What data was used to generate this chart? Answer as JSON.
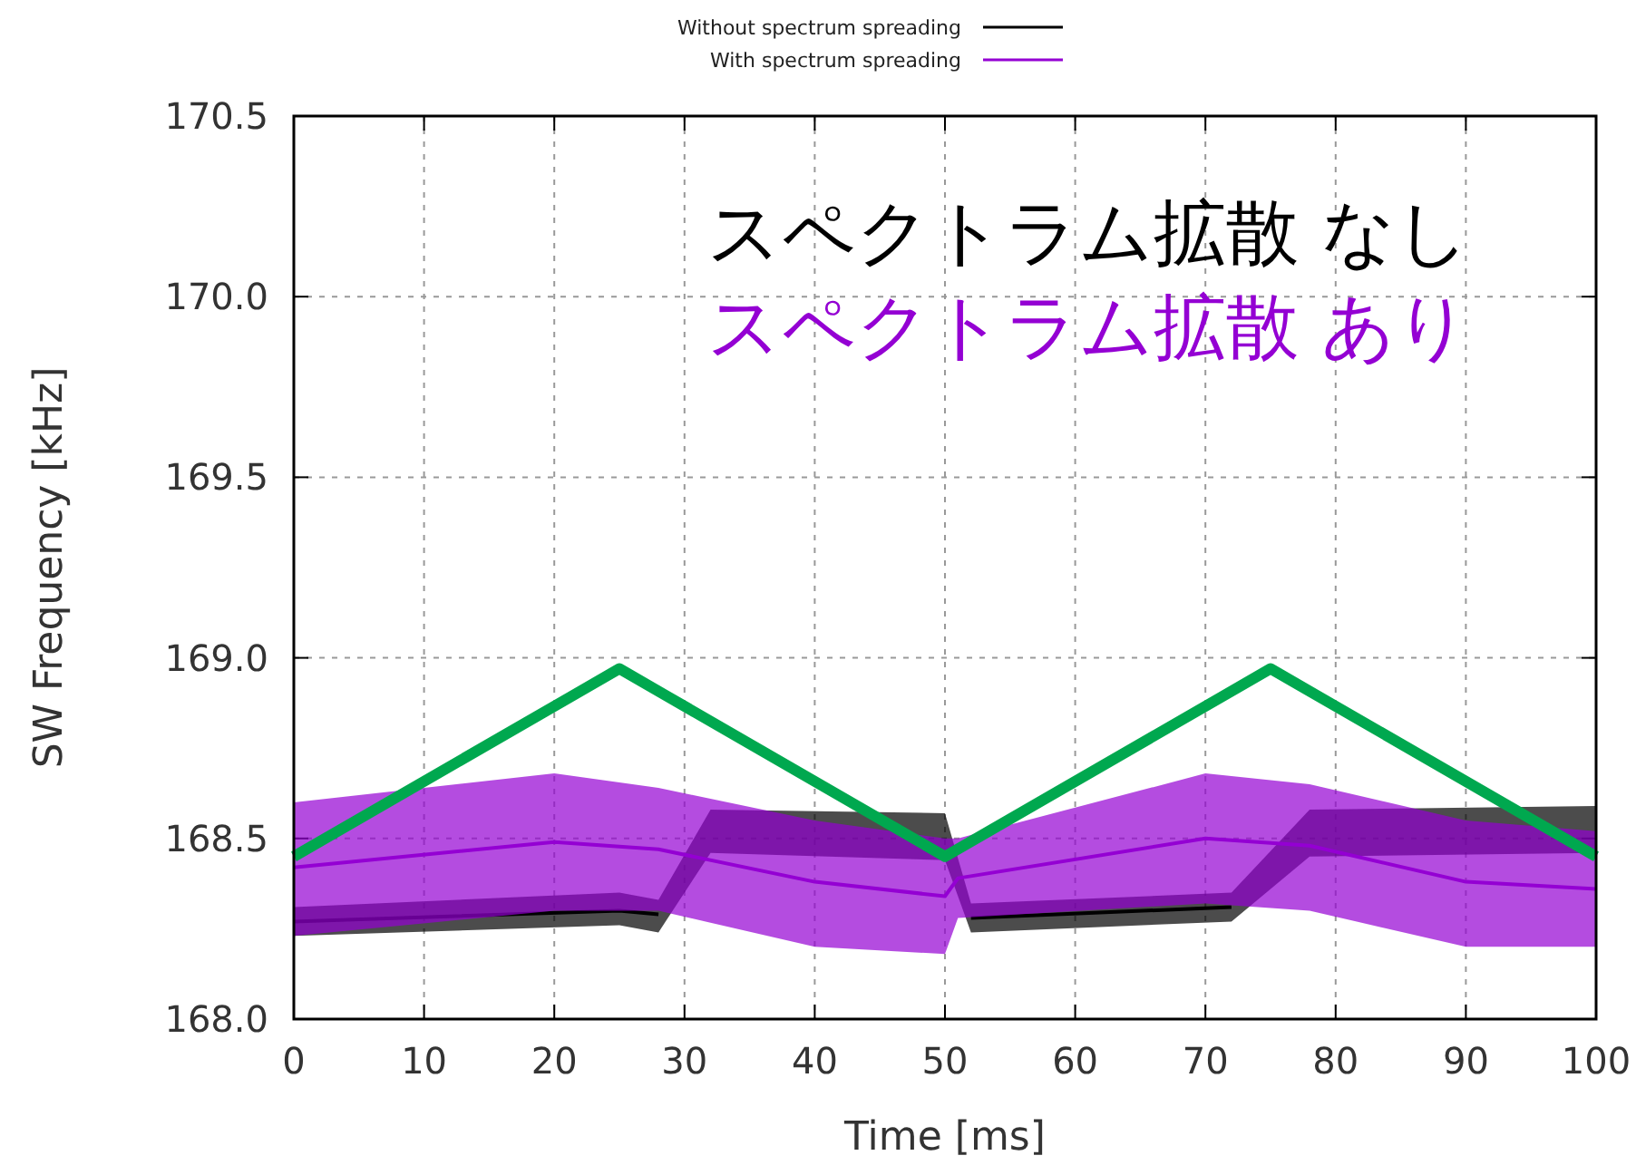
{
  "chart_data": {
    "type": "line",
    "xlabel": "Time [ms]",
    "ylabel": "SW Frequency [kHz]",
    "xlim": [
      0,
      100
    ],
    "xticks": [
      0,
      10,
      20,
      30,
      40,
      50,
      60,
      70,
      80,
      90,
      100
    ],
    "ylim": [
      168.0,
      170.5
    ],
    "yticks": [
      {
        "value": 168.0,
        "label": "168.0"
      },
      {
        "value": 168.5,
        "label": "168.5"
      },
      {
        "value": 169.0,
        "label": "169.0"
      },
      {
        "value": 169.5,
        "label": "169.5"
      },
      {
        "value": 170.0,
        "label": "170.0"
      },
      {
        "value": 170.5,
        "label": "170.5"
      }
    ],
    "grid": true,
    "legend": "top",
    "marker": "none",
    "line_style": "solid",
    "series": [
      {
        "name": "Without spectrum spreading",
        "color": "#000000",
        "x": [
          0,
          25,
          28,
          32,
          50,
          52,
          72,
          78,
          100
        ],
        "values": [
          168.27,
          168.3,
          168.29,
          null,
          null,
          168.28,
          168.31,
          null,
          null
        ],
        "lower": [
          168.23,
          168.26,
          168.24,
          168.46,
          168.44,
          168.24,
          168.27,
          168.45,
          168.46
        ],
        "upper": [
          168.31,
          168.35,
          168.33,
          168.58,
          168.57,
          168.32,
          168.35,
          168.58,
          168.59
        ]
      },
      {
        "name": "With spectrum spreading",
        "color": "#9400d3",
        "x": [
          0,
          20,
          28,
          40,
          50,
          51,
          70,
          78,
          90,
          100
        ],
        "values": [
          168.42,
          168.49,
          168.47,
          168.38,
          168.34,
          168.39,
          168.5,
          168.48,
          168.38,
          168.36
        ],
        "lower": [
          168.23,
          168.3,
          168.3,
          168.2,
          168.18,
          168.28,
          168.32,
          168.3,
          168.2,
          168.2
        ],
        "upper": [
          168.6,
          168.68,
          168.64,
          168.55,
          168.5,
          168.5,
          168.68,
          168.65,
          168.55,
          168.52
        ]
      },
      {
        "color": "#00a84f",
        "x": [
          0,
          25,
          50,
          75,
          100
        ],
        "values": [
          168.45,
          168.97,
          168.45,
          168.97,
          168.45
        ]
      }
    ],
    "annotations": [
      "スペクトラム拡散 なし",
      "スペクトラム拡散 あり"
    ]
  }
}
